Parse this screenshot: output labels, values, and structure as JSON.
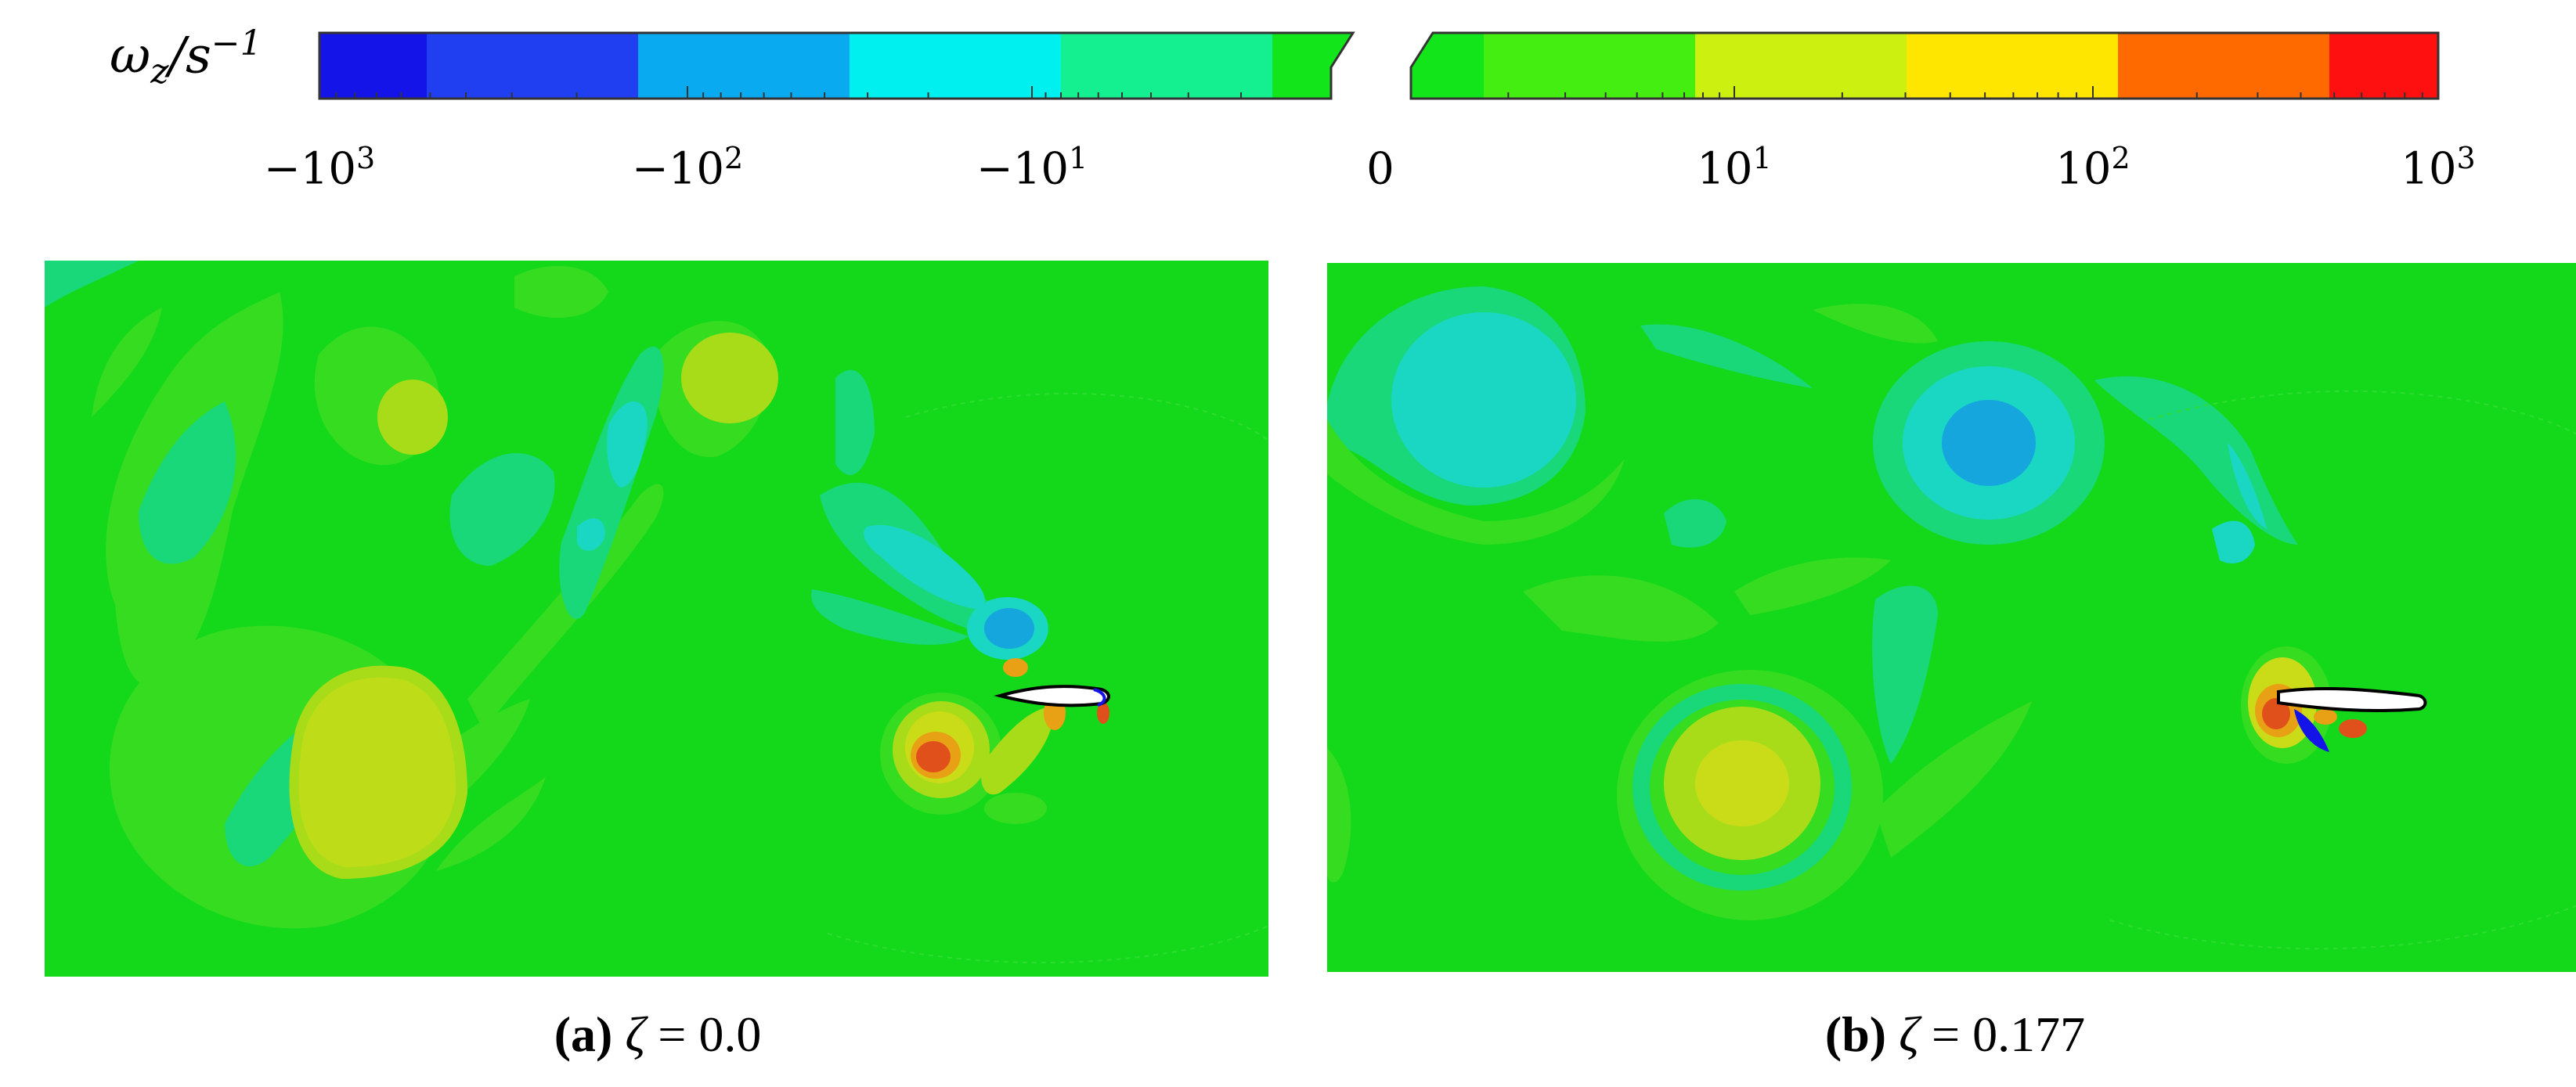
{
  "colorbar": {
    "label_main": "ω",
    "label_sub": "z",
    "label_den": "/s",
    "label_exp": "−1",
    "neg_colors": [
      "#1414e8",
      "#1f3ff0",
      "#0aaaf0",
      "#00f0f0",
      "#14f090",
      "#12e61a"
    ],
    "pos_colors": [
      "#12e61a",
      "#44ee10",
      "#ccf010",
      "#ffe600",
      "#ff6a00",
      "#ff1010"
    ],
    "ticks": [
      {
        "base": "−10",
        "exp": "3"
      },
      {
        "base": "−10",
        "exp": "2"
      },
      {
        "base": "−10",
        "exp": "1"
      },
      {
        "base": "0",
        "exp": ""
      },
      {
        "base": "10",
        "exp": "1"
      },
      {
        "base": "10",
        "exp": "2"
      },
      {
        "base": "10",
        "exp": "3"
      }
    ]
  },
  "panels": [
    {
      "tag": "(a)",
      "symbol": "ζ",
      "rest": " = 0.0"
    },
    {
      "tag": "(b)",
      "symbol": "ζ",
      "rest": " = 0.177"
    }
  ],
  "palette": {
    "background": "#13d91a",
    "light_green": "#36dc20",
    "teal": "#18d87a",
    "cyan": "#1ad7c4",
    "blue": "#14a6dc",
    "yellow_green": "#a8dc18",
    "yellow": "#cadc18",
    "orange": "#e8a014",
    "red": "#e0501a"
  }
}
